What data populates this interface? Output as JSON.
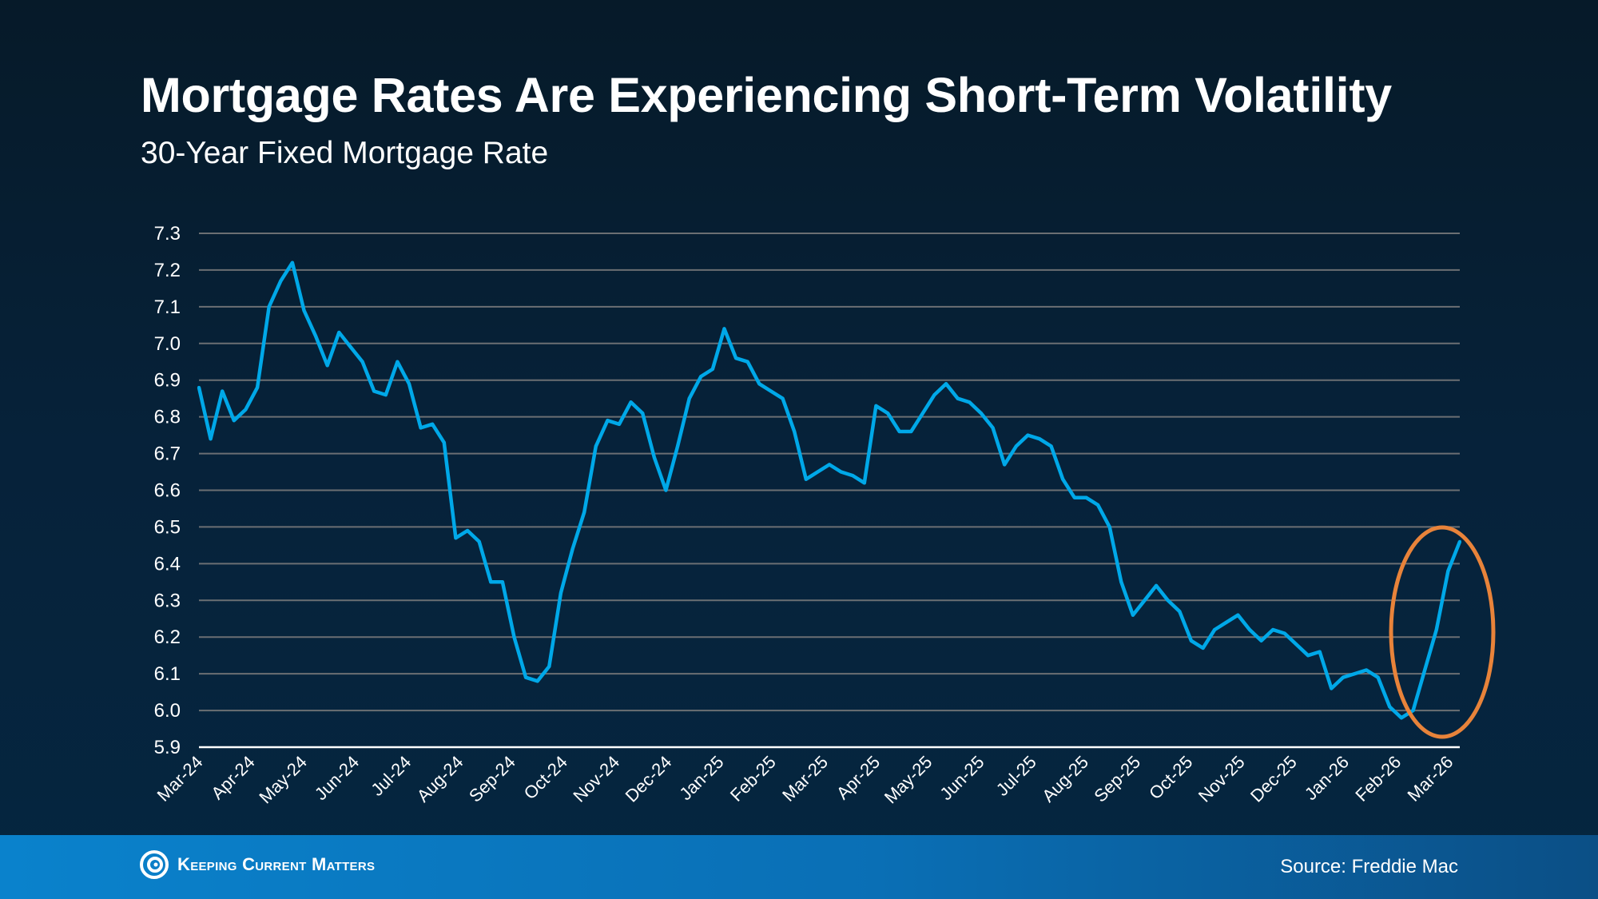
{
  "title": "Mortgage Rates Are Experiencing Short-Term Volatility",
  "subtitle": "30-Year Fixed Mortgage Rate",
  "footer": {
    "brand": "Keeping Current Matters",
    "source": "Source: Freddie Mac"
  },
  "colors": {
    "line": "#00a8e8",
    "highlight": "#e8833a",
    "grid": "#6b6f73"
  },
  "chart_data": {
    "type": "line",
    "title": "Mortgage Rates Are Experiencing Short-Term Volatility",
    "subtitle": "30-Year Fixed Mortgage Rate",
    "xlabel": "",
    "ylabel": "",
    "ylim": [
      5.9,
      7.3
    ],
    "yticks": [
      "5.9",
      "6.0",
      "6.1",
      "6.2",
      "6.3",
      "6.4",
      "6.5",
      "6.6",
      "6.7",
      "6.8",
      "6.9",
      "7.0",
      "7.1",
      "7.2",
      "7.3"
    ],
    "xticks": [
      "Mar-24",
      "Apr-24",
      "May-24",
      "Jun-24",
      "Jul-24",
      "Aug-24",
      "Sep-24",
      "Oct-24",
      "Nov-24",
      "Dec-24",
      "Jan-25",
      "Feb-25",
      "Mar-25",
      "Apr-25",
      "May-25",
      "Jun-25",
      "Jul-25",
      "Aug-25",
      "Sep-25",
      "Oct-25",
      "Nov-25",
      "Dec-25",
      "Jan-26",
      "Feb-26",
      "Mar-26"
    ],
    "grid": true,
    "annotation": "highlight ellipse around most recent rise",
    "series": [
      {
        "name": "30-Year Fixed Mortgage Rate",
        "values": [
          6.88,
          6.74,
          6.87,
          6.79,
          6.82,
          6.88,
          7.1,
          7.17,
          7.22,
          7.09,
          7.02,
          6.94,
          7.03,
          6.99,
          6.95,
          6.87,
          6.86,
          6.95,
          6.89,
          6.77,
          6.78,
          6.73,
          6.47,
          6.49,
          6.46,
          6.35,
          6.35,
          6.2,
          6.09,
          6.08,
          6.12,
          6.32,
          6.44,
          6.54,
          6.72,
          6.79,
          6.78,
          6.84,
          6.81,
          6.69,
          6.6,
          6.72,
          6.85,
          6.91,
          6.93,
          7.04,
          6.96,
          6.95,
          6.89,
          6.87,
          6.85,
          6.76,
          6.63,
          6.65,
          6.67,
          6.65,
          6.64,
          6.62,
          6.83,
          6.81,
          6.76,
          6.76,
          6.81,
          6.86,
          6.89,
          6.85,
          6.84,
          6.81,
          6.77,
          6.67,
          6.72,
          6.75,
          6.74,
          6.72,
          6.63,
          6.58,
          6.58,
          6.56,
          6.5,
          6.35,
          6.26,
          6.3,
          6.34,
          6.3,
          6.27,
          6.19,
          6.17,
          6.22,
          6.24,
          6.26,
          6.22,
          6.19,
          6.22,
          6.21,
          6.18,
          6.15,
          6.16,
          6.06,
          6.09,
          6.1,
          6.11,
          6.09,
          6.01,
          5.98,
          6.0,
          6.11,
          6.22,
          6.38,
          6.46
        ]
      }
    ]
  }
}
